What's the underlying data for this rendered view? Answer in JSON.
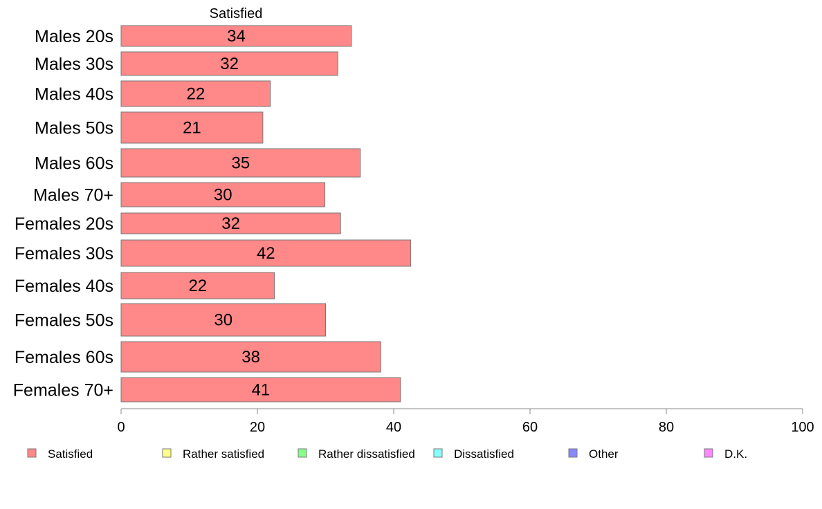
{
  "chart_data": {
    "type": "bar",
    "orientation": "horizontal",
    "series_header": "Satisfied",
    "categories": [
      "Males 20s",
      "Males 30s",
      "Males 40s",
      "Males 50s",
      "Males 60s",
      "Males 70+",
      "Females 20s",
      "Females 30s",
      "Females 40s",
      "Females 50s",
      "Females 60s",
      "Females 70+"
    ],
    "series": [
      {
        "name": "Satisfied",
        "color": "#ff8888",
        "values": [
          33.8,
          31.8,
          21.9,
          20.8,
          35.1,
          29.9,
          32.2,
          42.5,
          22.5,
          30.0,
          38.1,
          41.0
        ]
      }
    ],
    "data_labels": [
      "34",
      "32",
      "22",
      "21",
      "35",
      "30",
      "32",
      "42",
      "22",
      "30",
      "38",
      "41"
    ],
    "xlim": [
      0,
      100
    ],
    "xticks": [
      "0",
      "20",
      "40",
      "60",
      "80",
      "100"
    ],
    "grid": false,
    "legend_position": "bottom",
    "legend": [
      {
        "label": "Satisfied",
        "color": "#ff8888"
      },
      {
        "label": "Rather satisfied",
        "color": "#ffff88"
      },
      {
        "label": "Rather dissatisfied",
        "color": "#88ff88"
      },
      {
        "label": "Dissatisfied",
        "color": "#88ffff"
      },
      {
        "label": "Other",
        "color": "#8888ff"
      },
      {
        "label": "D.K.",
        "color": "#ff88ff"
      }
    ]
  }
}
